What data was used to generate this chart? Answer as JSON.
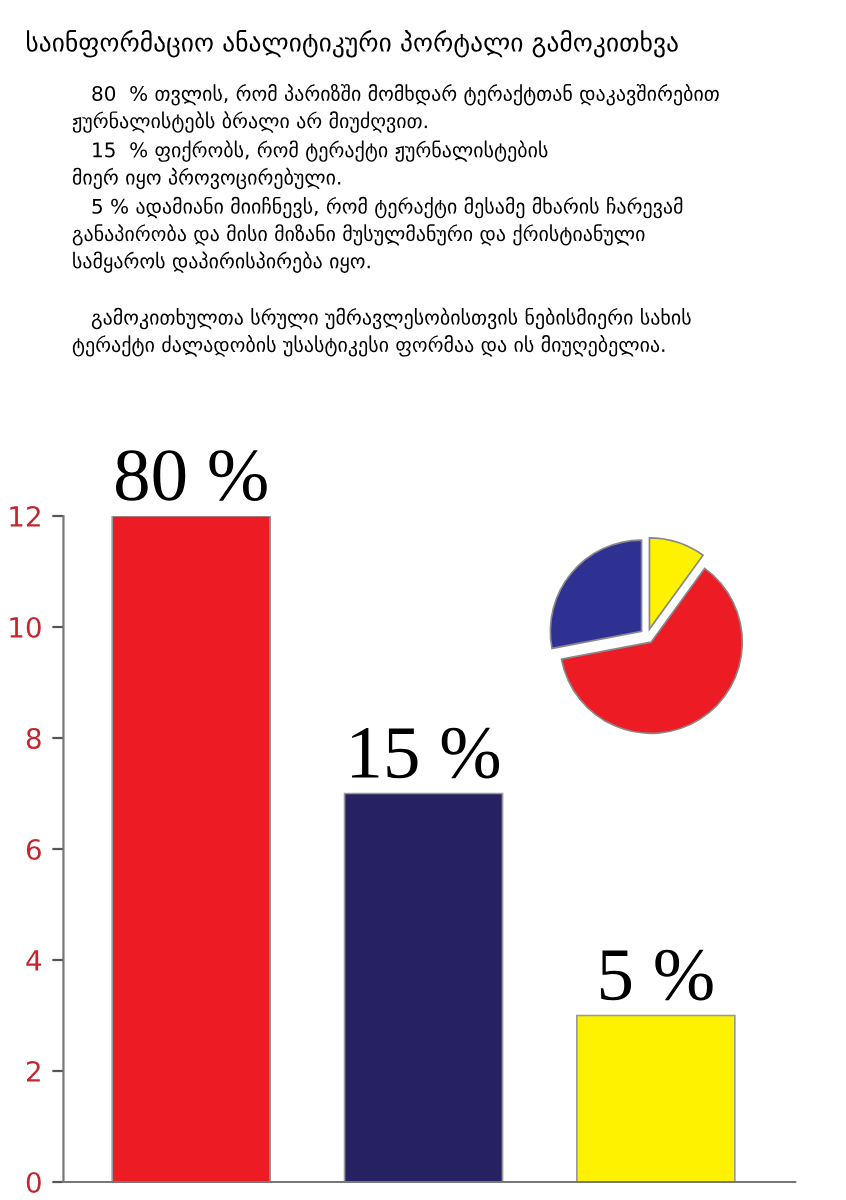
{
  "chart_data": [
    {
      "type": "bar",
      "title": "საინფორმაციო ანალიტიკური პორტალი გამოკითხვა",
      "annotations": [
        "80  % თვლის, რომ პარიზში მომხდარ ტერაქტთან დაკავშირებით\nჟურნალისტებს ბრალი არ მიუძღვით.",
        "15  % ფიქრობს, რომ ტერაქტი ჟურნალისტების\nმიერ იყო პროვოცირებული.",
        "5 % ადამიანი მიიჩნევს, რომ ტერაქტი მესამე მხარის ჩარევამ\nგანაპირობა და მისი მიზანი მუსულმანური და ქრისტიანული\nსამყაროს დაპირისპირება იყო.",
        "გამოკითხულთა სრული უმრავლესობისთვის ნებისმიერი სახის\nტერაქტი ძალადობის უსასტიკესი ფორმაა და ის მიუღებელია.",
        {
          "text": "80 %",
          "y": 12
        },
        {
          "text": "15 %",
          "y": 7
        },
        {
          "text": "5 %",
          "y": 3
        }
      ],
      "categories": [
        null,
        null,
        null
      ],
      "values": [
        12,
        7,
        3
      ],
      "colors": [
        "#ed1c24",
        "#262262",
        "#fff200"
      ],
      "ylim": [
        0,
        12
      ],
      "yticks": [
        0,
        2,
        4,
        6,
        8,
        10,
        12
      ],
      "grid": false,
      "legend": false
    },
    {
      "type": "pie",
      "categories": [
        null,
        null,
        null
      ],
      "values": [
        10,
        62,
        28
      ],
      "colors": [
        "#fff200",
        "#ed1c24",
        "#2e3192"
      ]
    }
  ]
}
